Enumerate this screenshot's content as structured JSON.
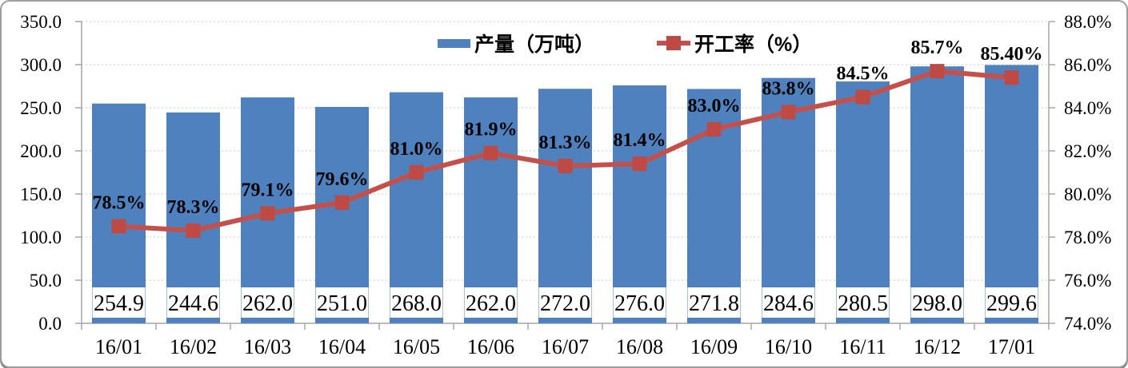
{
  "window": {
    "background": "#ffffff",
    "frame_border_color": "#9e9e9e"
  },
  "legend": {
    "position": "top-center",
    "items": [
      {
        "label": "产量（万吨）",
        "swatch": "bar-swatch",
        "color": "#4E81BD"
      },
      {
        "label": "开工率（%）",
        "swatch": "line-marker-swatch",
        "line_color": "#C4504B",
        "marker_color": "#BE4A44"
      }
    ]
  },
  "chart_data": {
    "type": "bar",
    "combo": "bar+line",
    "categories": [
      "16/01",
      "16/02",
      "16/03",
      "16/04",
      "16/05",
      "16/06",
      "16/07",
      "16/08",
      "16/09",
      "16/10",
      "16/11",
      "16/12",
      "17/01"
    ],
    "series": [
      {
        "name": "产量（万吨）",
        "chart_type": "bar",
        "axis": "left",
        "color": "#4E81BD",
        "values": [
          254.9,
          244.6,
          262.0,
          251.0,
          268.0,
          262.0,
          272.0,
          276.0,
          271.8,
          284.6,
          280.5,
          298.0,
          299.6
        ],
        "data_labels": [
          "254.9",
          "244.6",
          "262.0",
          "251.0",
          "268.0",
          "262.0",
          "272.0",
          "276.0",
          "271.8",
          "284.6",
          "280.5",
          "298.0",
          "299.6"
        ],
        "data_label_color": "#4F81BD",
        "data_label_bg": "#FFFFFF"
      },
      {
        "name": "开工率（%）",
        "chart_type": "line",
        "axis": "right",
        "color": "#C4504B",
        "marker": "square",
        "marker_color": "#BE4A44",
        "values": [
          78.5,
          78.3,
          79.1,
          79.6,
          81.0,
          81.9,
          81.3,
          81.4,
          83.0,
          83.8,
          84.5,
          85.7,
          85.4
        ],
        "data_labels": [
          "78.5%",
          "78.3%",
          "79.1%",
          "79.6%",
          "81.0%",
          "81.9%",
          "81.3%",
          "81.4%",
          "83.0%",
          "83.8%",
          "84.5%",
          "85.7%",
          "85.40%"
        ],
        "data_label_color": "#000000"
      }
    ],
    "left_axis": {
      "min": 0,
      "max": 350,
      "step": 50,
      "tick_labels": [
        "0.0",
        "50.0",
        "100.0",
        "150.0",
        "200.0",
        "250.0",
        "300.0",
        "350.0"
      ]
    },
    "right_axis": {
      "min": 74,
      "max": 88,
      "step": 2,
      "tick_labels": [
        "74.0%",
        "76.0%",
        "78.0%",
        "80.0%",
        "82.0%",
        "84.0%",
        "86.0%",
        "88.0%"
      ]
    },
    "grid": true,
    "legend_position": "top-center"
  }
}
